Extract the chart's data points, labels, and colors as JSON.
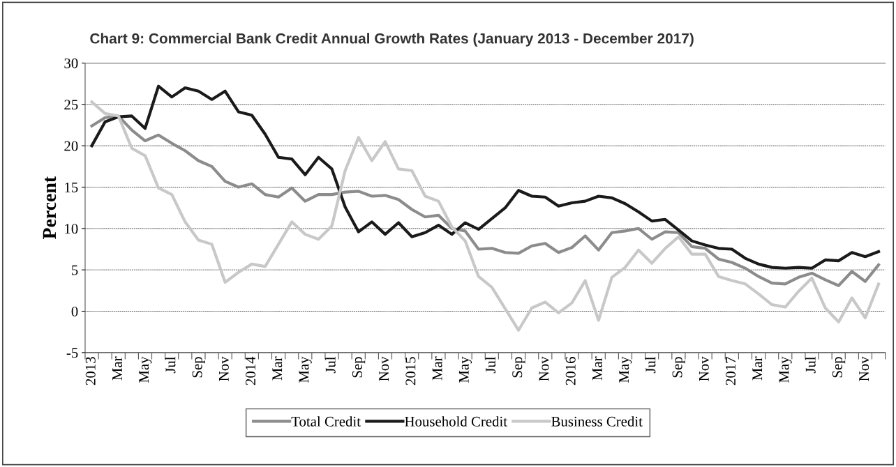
{
  "chart_data": {
    "type": "line",
    "title": "Chart 9: Commercial Bank Credit Annual Growth Rates (January 2013 - December 2017)",
    "ylabel": "Percent",
    "categories": [
      "2013",
      null,
      "Mar",
      null,
      "May",
      null,
      "Jul",
      null,
      "Sep",
      null,
      "Nov",
      null,
      "2014",
      null,
      "Mar",
      null,
      "May",
      null,
      "Jul",
      null,
      "Sep",
      null,
      "Nov",
      null,
      "2015",
      null,
      "Mar",
      null,
      "May",
      null,
      "Jul",
      null,
      "Sep",
      null,
      "Nov",
      null,
      "2016",
      null,
      "Mar",
      null,
      "May",
      null,
      "Jul",
      null,
      "Sep",
      null,
      "Nov",
      null,
      "2017",
      null,
      "Mar",
      null,
      "May",
      null,
      "Jul",
      null,
      "Sep",
      null,
      "Nov",
      null
    ],
    "series": [
      {
        "name": "Total Credit",
        "color": "#8c8c8c",
        "values": [
          22.4,
          23.4,
          23.6,
          21.9,
          20.6,
          21.3,
          20.3,
          19.4,
          18.2,
          17.5,
          15.7,
          15.0,
          15.4,
          14.1,
          13.8,
          14.9,
          13.3,
          14.1,
          14.1,
          14.4,
          14.5,
          13.9,
          14.0,
          13.5,
          12.3,
          11.4,
          11.6,
          10.0,
          9.7,
          7.5,
          7.6,
          7.1,
          7.0,
          7.9,
          8.2,
          7.1,
          7.7,
          9.1,
          7.4,
          9.5,
          9.7,
          10.0,
          8.7,
          9.6,
          9.5,
          7.8,
          7.6,
          6.3,
          5.9,
          5.2,
          4.2,
          3.4,
          3.3,
          4.1,
          4.6,
          3.8,
          3.1,
          4.8,
          3.6,
          5.6
        ]
      },
      {
        "name": "Household Credit",
        "color": "#1a1a1a",
        "values": [
          20.0,
          22.9,
          23.5,
          23.6,
          22.1,
          27.2,
          25.9,
          27.0,
          26.6,
          25.6,
          26.6,
          24.1,
          23.7,
          21.4,
          18.6,
          18.4,
          16.5,
          18.6,
          17.2,
          12.6,
          9.6,
          10.8,
          9.3,
          10.7,
          9.0,
          9.5,
          10.4,
          9.3,
          10.7,
          9.9,
          11.2,
          12.5,
          14.6,
          13.9,
          13.8,
          12.7,
          13.1,
          13.3,
          13.9,
          13.7,
          13.0,
          12.0,
          10.9,
          11.1,
          9.8,
          8.5,
          8.0,
          7.6,
          7.5,
          6.4,
          5.7,
          5.3,
          5.2,
          5.3,
          5.2,
          6.2,
          6.1,
          7.1,
          6.6,
          7.2
        ]
      },
      {
        "name": "Business Credit",
        "color": "#c8c8c8",
        "values": [
          25.3,
          23.9,
          23.6,
          19.7,
          18.8,
          14.9,
          14.1,
          10.8,
          8.6,
          8.1,
          3.5,
          4.7,
          5.7,
          5.4,
          8.1,
          10.8,
          9.3,
          8.7,
          10.3,
          17.0,
          21.0,
          18.2,
          20.5,
          17.2,
          17.0,
          13.9,
          13.3,
          10.2,
          8.5,
          4.2,
          2.9,
          0.3,
          -2.3,
          0.4,
          1.1,
          -0.2,
          1.0,
          3.7,
          -1.1,
          4.1,
          5.3,
          7.4,
          5.8,
          7.6,
          9.0,
          6.9,
          6.9,
          4.2,
          3.7,
          3.3,
          2.1,
          0.8,
          0.5,
          2.4,
          4.0,
          0.4,
          -1.3,
          1.6,
          -0.8,
          3.3
        ]
      }
    ],
    "ylim": [
      -5,
      30
    ],
    "yticks": [
      -5,
      0,
      5,
      10,
      15,
      20,
      25,
      30
    ],
    "grid": "y",
    "legend": "bottom",
    "marker": "none",
    "line_style": "solid"
  }
}
